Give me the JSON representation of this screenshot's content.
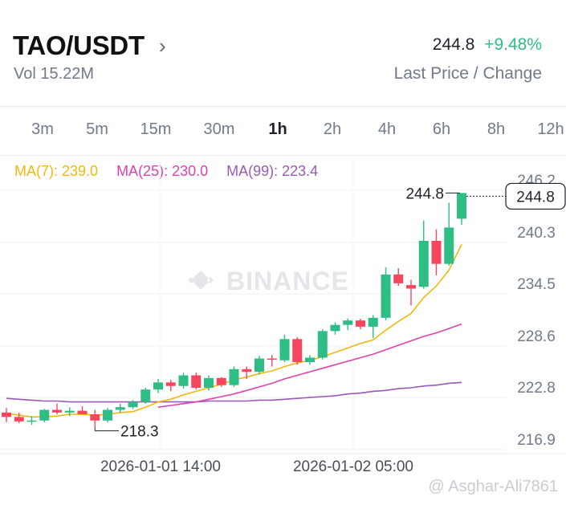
{
  "header": {
    "pair": "TAO/USDT",
    "volume": "Vol 15.22M",
    "last_price": "244.8",
    "change": "+9.48%",
    "price_caption": "Last Price / Change"
  },
  "timeframes": [
    {
      "label": "3m",
      "active": false
    },
    {
      "label": "5m",
      "active": false
    },
    {
      "label": "15m",
      "active": false
    },
    {
      "label": "30m",
      "active": false
    },
    {
      "label": "1h",
      "active": true
    },
    {
      "label": "2h",
      "active": false
    },
    {
      "label": "4h",
      "active": false
    },
    {
      "label": "6h",
      "active": false
    },
    {
      "label": "8h",
      "active": false
    },
    {
      "label": "12h",
      "active": false
    }
  ],
  "ma_legend": {
    "ma7": "MA(7): 239.0",
    "ma25": "MA(25): 230.0",
    "ma99": "MA(99): 223.4"
  },
  "colors": {
    "up": "#2ebd85",
    "down": "#f6465d",
    "ma7": "#f0b90b",
    "ma25": "#e040b0",
    "ma99": "#9b59b6"
  },
  "watermark": "BINANCE",
  "credit": "@ Asghar-Ali7861",
  "chart_data": {
    "type": "candlestick",
    "y_ticks": [
      "246.2",
      "240.3",
      "234.5",
      "228.6",
      "222.8",
      "216.9"
    ],
    "x_ticks": [
      "2026-01-01 14:00",
      "2026-01-02 05:00"
    ],
    "last_price_tag": "244.8",
    "high_label": "244.8",
    "low_label": "218.3",
    "candles": [
      {
        "o": 220.0,
        "h": 220.5,
        "l": 218.9,
        "c": 219.5
      },
      {
        "o": 219.5,
        "h": 220.0,
        "l": 218.8,
        "c": 219.0
      },
      {
        "o": 219.0,
        "h": 219.6,
        "l": 218.6,
        "c": 219.1
      },
      {
        "o": 219.1,
        "h": 220.4,
        "l": 218.9,
        "c": 220.3
      },
      {
        "o": 220.3,
        "h": 221.0,
        "l": 219.8,
        "c": 220.0
      },
      {
        "o": 220.0,
        "h": 220.6,
        "l": 219.6,
        "c": 220.2
      },
      {
        "o": 220.2,
        "h": 220.7,
        "l": 219.9,
        "c": 219.8
      },
      {
        "o": 219.8,
        "h": 220.3,
        "l": 218.3,
        "c": 219.1
      },
      {
        "o": 219.1,
        "h": 220.5,
        "l": 218.9,
        "c": 220.3
      },
      {
        "o": 220.3,
        "h": 221.0,
        "l": 220.0,
        "c": 220.6
      },
      {
        "o": 220.6,
        "h": 221.4,
        "l": 220.4,
        "c": 221.2
      },
      {
        "o": 221.2,
        "h": 222.8,
        "l": 221.0,
        "c": 222.6
      },
      {
        "o": 222.6,
        "h": 223.8,
        "l": 222.2,
        "c": 223.4
      },
      {
        "o": 223.4,
        "h": 223.7,
        "l": 222.4,
        "c": 223.0
      },
      {
        "o": 223.0,
        "h": 224.5,
        "l": 222.7,
        "c": 224.2
      },
      {
        "o": 224.2,
        "h": 224.5,
        "l": 222.6,
        "c": 222.8
      },
      {
        "o": 222.8,
        "h": 224.2,
        "l": 222.5,
        "c": 223.9
      },
      {
        "o": 223.9,
        "h": 224.0,
        "l": 222.9,
        "c": 223.1
      },
      {
        "o": 223.1,
        "h": 225.2,
        "l": 222.9,
        "c": 224.9
      },
      {
        "o": 224.9,
        "h": 225.2,
        "l": 223.8,
        "c": 224.6
      },
      {
        "o": 224.6,
        "h": 226.4,
        "l": 224.3,
        "c": 226.1
      },
      {
        "o": 226.1,
        "h": 226.5,
        "l": 225.2,
        "c": 226.0
      },
      {
        "o": 225.9,
        "h": 228.8,
        "l": 225.7,
        "c": 228.3
      },
      {
        "o": 228.3,
        "h": 228.5,
        "l": 225.4,
        "c": 225.7
      },
      {
        "o": 225.7,
        "h": 226.5,
        "l": 225.4,
        "c": 226.2
      },
      {
        "o": 226.2,
        "h": 229.4,
        "l": 226.0,
        "c": 229.2
      },
      {
        "o": 229.2,
        "h": 230.2,
        "l": 228.8,
        "c": 229.9
      },
      {
        "o": 229.9,
        "h": 230.6,
        "l": 229.3,
        "c": 230.4
      },
      {
        "o": 230.4,
        "h": 230.6,
        "l": 229.4,
        "c": 229.7
      },
      {
        "o": 229.7,
        "h": 231.0,
        "l": 228.4,
        "c": 230.7
      },
      {
        "o": 230.7,
        "h": 236.4,
        "l": 230.4,
        "c": 235.6
      },
      {
        "o": 235.6,
        "h": 236.3,
        "l": 234.3,
        "c": 234.6
      },
      {
        "o": 234.4,
        "h": 235.0,
        "l": 232.1,
        "c": 234.0
      },
      {
        "o": 234.2,
        "h": 241.7,
        "l": 234.0,
        "c": 239.4
      },
      {
        "o": 239.4,
        "h": 240.7,
        "l": 235.5,
        "c": 236.8
      },
      {
        "o": 236.8,
        "h": 243.7,
        "l": 236.6,
        "c": 240.9
      },
      {
        "o": 241.9,
        "h": 244.8,
        "l": 241.2,
        "c": 244.8
      }
    ],
    "ma7_series": [
      219.9,
      219.7,
      219.5,
      219.5,
      219.6,
      219.8,
      219.8,
      219.7,
      219.8,
      220.0,
      220.1,
      220.6,
      221.2,
      221.5,
      222.0,
      222.4,
      222.8,
      223.2,
      223.7,
      224.0,
      224.4,
      224.7,
      225.2,
      225.6,
      225.9,
      226.3,
      226.8,
      227.3,
      227.8,
      228.2,
      229.3,
      230.3,
      231.2,
      233.0,
      234.3,
      236.1,
      239.0
    ],
    "ma25_series": [
      null,
      null,
      null,
      null,
      null,
      null,
      null,
      null,
      null,
      null,
      null,
      null,
      220.6,
      220.8,
      221.0,
      221.2,
      221.5,
      221.8,
      222.1,
      222.5,
      222.9,
      223.3,
      223.8,
      224.2,
      224.6,
      225.0,
      225.4,
      225.8,
      226.2,
      226.6,
      227.1,
      227.6,
      228.1,
      228.6,
      229.0,
      229.5,
      230.0
    ],
    "ma99_series": [
      221.6,
      221.5,
      221.4,
      221.3,
      221.3,
      221.2,
      221.2,
      221.2,
      221.2,
      221.2,
      221.2,
      221.2,
      221.2,
      221.2,
      221.2,
      221.2,
      221.3,
      221.3,
      221.3,
      221.3,
      221.4,
      221.4,
      221.5,
      221.6,
      221.7,
      221.8,
      221.9,
      222.1,
      222.2,
      222.4,
      222.5,
      222.7,
      222.8,
      223.0,
      223.1,
      223.3,
      223.4
    ],
    "ylim": [
      216.0,
      246.9
    ]
  }
}
